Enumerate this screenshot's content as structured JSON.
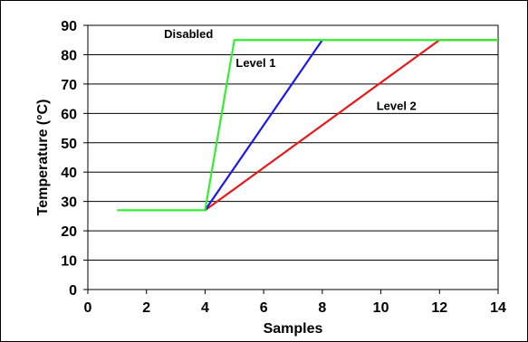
{
  "chart_data": {
    "type": "line",
    "title": "",
    "xlabel": "Samples",
    "ylabel": "Temperature (°C)",
    "xlim": [
      0,
      14
    ],
    "ylim": [
      0,
      90
    ],
    "x_ticks": [
      "0",
      "2",
      "4",
      "6",
      "8",
      "10",
      "12",
      "14"
    ],
    "y_ticks": [
      "0",
      "10",
      "20",
      "30",
      "40",
      "50",
      "60",
      "70",
      "80",
      "90"
    ],
    "grid": "horizontal",
    "legend": "none",
    "series": [
      {
        "name": "Disabled",
        "color": "#33ee33",
        "x": [
          1,
          4,
          5,
          14
        ],
        "y": [
          27,
          27,
          85,
          85
        ]
      },
      {
        "name": "Level 1",
        "color": "#1a1ae6",
        "x": [
          4,
          8
        ],
        "y": [
          27,
          85
        ]
      },
      {
        "name": "Level 2",
        "color": "#e61a1a",
        "x": [
          4,
          12,
          14
        ],
        "y": [
          27,
          85,
          85
        ]
      }
    ],
    "annotations": [
      {
        "text": "Disabled",
        "series": "Disabled"
      },
      {
        "text": "Level 1",
        "series": "Level 1"
      },
      {
        "text": "Level 2",
        "series": "Level 2"
      }
    ]
  }
}
